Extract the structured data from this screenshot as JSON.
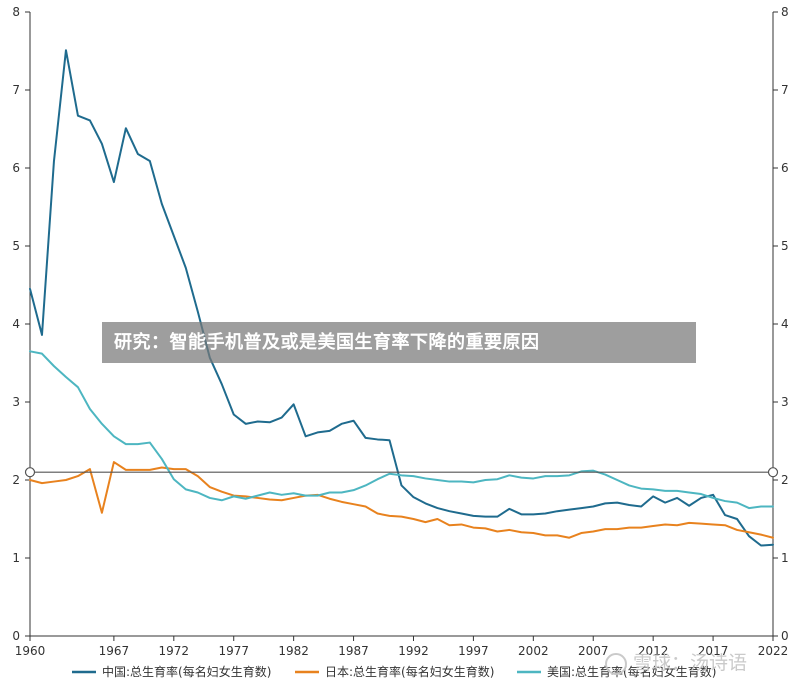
{
  "banner": {
    "text": "研究：智能手机普及或是美国生育率下降的重要原因"
  },
  "watermark": {
    "text": "雪球：汤诗语"
  },
  "colors": {
    "china": "#1f6b8e",
    "japan": "#e8821e",
    "usa": "#4db6c1",
    "marker": "#555555",
    "axis": "#333333"
  },
  "chart_data": {
    "type": "line",
    "title": "",
    "xlabel": "",
    "ylabel": "",
    "xlim": [
      1960,
      2022
    ],
    "ylim": [
      0,
      8
    ],
    "grid": false,
    "legend_position": "bottom",
    "x_ticks": [
      "1960",
      "1967",
      "1972",
      "1977",
      "1982",
      "1987",
      "1992",
      "1997",
      "2002",
      "2007",
      "2012",
      "2017",
      "2022"
    ],
    "y_ticks_left": [
      "0",
      "1",
      "2",
      "3",
      "4",
      "5",
      "6",
      "7",
      "8"
    ],
    "y_ticks_right": [
      "0",
      "1",
      "2",
      "3",
      "4",
      "5",
      "6",
      "7",
      "8"
    ],
    "reference_line": {
      "y": 2.1
    },
    "x": [
      1960,
      1961,
      1962,
      1963,
      1964,
      1965,
      1966,
      1967,
      1968,
      1969,
      1970,
      1971,
      1972,
      1973,
      1974,
      1975,
      1976,
      1977,
      1978,
      1979,
      1980,
      1981,
      1982,
      1983,
      1984,
      1985,
      1986,
      1987,
      1988,
      1989,
      1990,
      1991,
      1992,
      1993,
      1994,
      1995,
      1996,
      1997,
      1998,
      1999,
      2000,
      2001,
      2002,
      2003,
      2004,
      2005,
      2006,
      2007,
      2008,
      2009,
      2010,
      2011,
      2012,
      2013,
      2014,
      2015,
      2016,
      2017,
      2018,
      2019,
      2020,
      2021,
      2022
    ],
    "series": [
      {
        "name": "中国:总生育率(每名妇女生育数)",
        "color_key": "china",
        "values": [
          4.45,
          3.86,
          6.09,
          7.51,
          6.67,
          6.61,
          6.31,
          5.82,
          6.51,
          6.18,
          6.09,
          5.54,
          5.13,
          4.72,
          4.16,
          3.57,
          3.23,
          2.84,
          2.72,
          2.75,
          2.74,
          2.8,
          2.97,
          2.56,
          2.61,
          2.63,
          2.72,
          2.76,
          2.54,
          2.52,
          2.51,
          1.93,
          1.78,
          1.7,
          1.64,
          1.6,
          1.57,
          1.54,
          1.53,
          1.53,
          1.63,
          1.56,
          1.56,
          1.57,
          1.6,
          1.62,
          1.64,
          1.66,
          1.7,
          1.71,
          1.68,
          1.66,
          1.79,
          1.71,
          1.77,
          1.67,
          1.77,
          1.81,
          1.55,
          1.5,
          1.28,
          1.16,
          1.17
        ]
      },
      {
        "name": "日本:总生育率(每名妇女生育数)",
        "color_key": "japan",
        "values": [
          2.0,
          1.96,
          1.98,
          2.0,
          2.05,
          2.14,
          1.58,
          2.23,
          2.13,
          2.13,
          2.13,
          2.16,
          2.14,
          2.14,
          2.05,
          1.91,
          1.85,
          1.8,
          1.79,
          1.77,
          1.75,
          1.74,
          1.77,
          1.8,
          1.81,
          1.76,
          1.72,
          1.69,
          1.66,
          1.57,
          1.54,
          1.53,
          1.5,
          1.46,
          1.5,
          1.42,
          1.43,
          1.39,
          1.38,
          1.34,
          1.36,
          1.33,
          1.32,
          1.29,
          1.29,
          1.26,
          1.32,
          1.34,
          1.37,
          1.37,
          1.39,
          1.39,
          1.41,
          1.43,
          1.42,
          1.45,
          1.44,
          1.43,
          1.42,
          1.36,
          1.33,
          1.3,
          1.26
        ]
      },
      {
        "name": "美国:总生育率(每名妇女生育数)",
        "color_key": "usa",
        "values": [
          3.65,
          3.62,
          3.46,
          3.32,
          3.19,
          2.91,
          2.72,
          2.56,
          2.46,
          2.46,
          2.48,
          2.27,
          2.01,
          1.88,
          1.84,
          1.77,
          1.74,
          1.79,
          1.76,
          1.8,
          1.84,
          1.81,
          1.83,
          1.8,
          1.8,
          1.84,
          1.84,
          1.87,
          1.93,
          2.01,
          2.08,
          2.06,
          2.05,
          2.02,
          2.0,
          1.98,
          1.98,
          1.97,
          2.0,
          2.01,
          2.06,
          2.03,
          2.02,
          2.05,
          2.05,
          2.06,
          2.11,
          2.12,
          2.07,
          2.0,
          1.93,
          1.89,
          1.88,
          1.86,
          1.86,
          1.84,
          1.82,
          1.77,
          1.73,
          1.71,
          1.64,
          1.66,
          1.66
        ]
      }
    ]
  }
}
